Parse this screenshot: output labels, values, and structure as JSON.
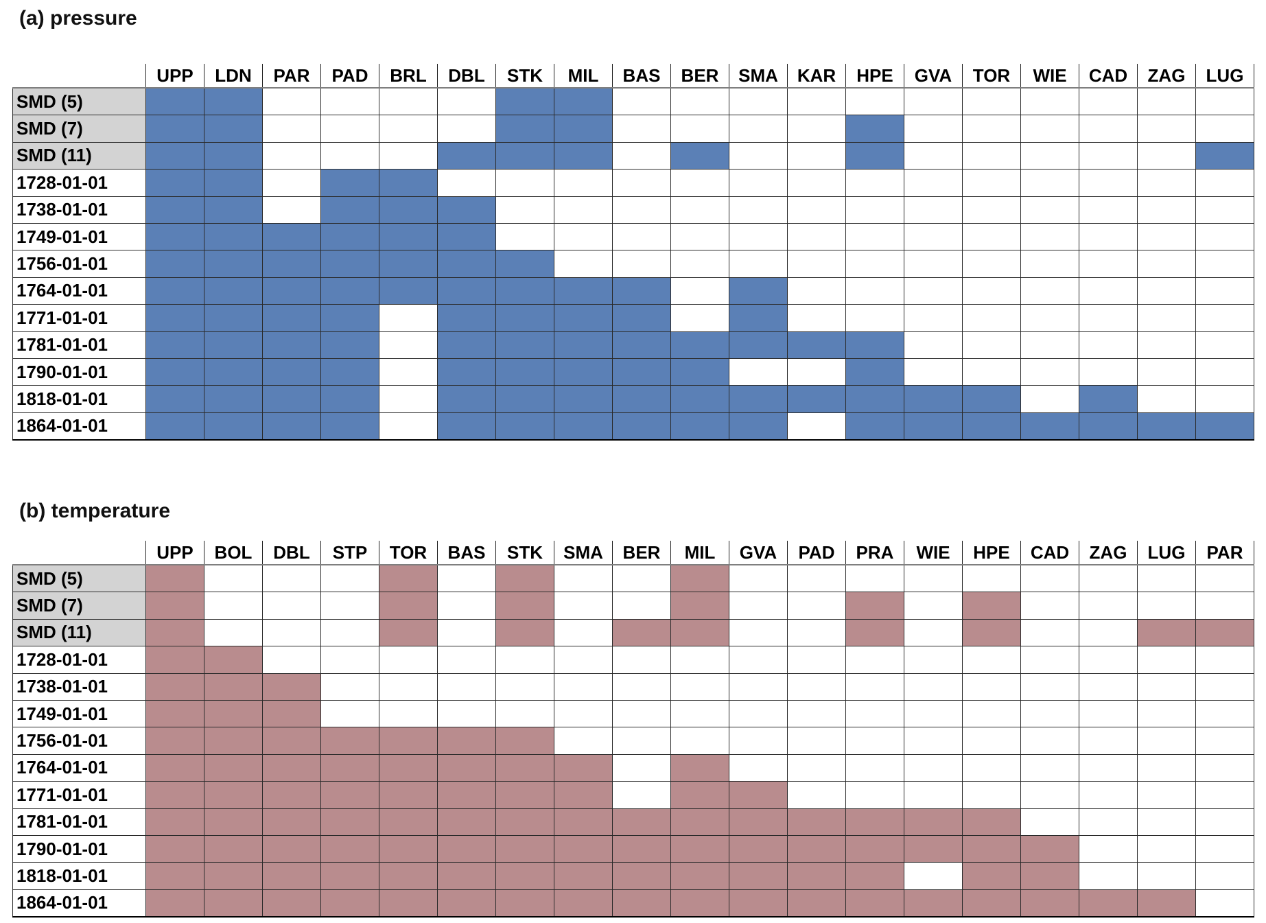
{
  "colors": {
    "pressure_fill": "#5b80b6",
    "temperature_fill": "#b98c8e",
    "label_bg": "#d3d3d3",
    "grid": "#2a2a2a"
  },
  "chart_data": [
    {
      "type": "heatmap",
      "title": "(a) pressure",
      "legend_position": "none",
      "grid": true,
      "value_meaning": "1 = station/series available (filled blue), 0 = not available (white)",
      "columns": [
        "UPP",
        "LDN",
        "PAR",
        "PAD",
        "BRL",
        "DBL",
        "STK",
        "MIL",
        "BAS",
        "BER",
        "SMA",
        "KAR",
        "HPE",
        "GVA",
        "TOR",
        "WIE",
        "CAD",
        "ZAG",
        "LUG"
      ],
      "rows": [
        {
          "label": "SMD (5)",
          "shaded": true,
          "values": [
            1,
            1,
            0,
            0,
            0,
            0,
            1,
            1,
            0,
            0,
            0,
            0,
            0,
            0,
            0,
            0,
            0,
            0,
            0
          ]
        },
        {
          "label": "SMD (7)",
          "shaded": true,
          "values": [
            1,
            1,
            0,
            0,
            0,
            0,
            1,
            1,
            0,
            0,
            0,
            0,
            1,
            0,
            0,
            0,
            0,
            0,
            0
          ]
        },
        {
          "label": "SMD (11)",
          "shaded": true,
          "values": [
            1,
            1,
            0,
            0,
            0,
            1,
            1,
            1,
            0,
            1,
            0,
            0,
            1,
            0,
            0,
            0,
            0,
            0,
            1
          ]
        },
        {
          "label": "1728-01-01",
          "shaded": false,
          "values": [
            1,
            1,
            0,
            1,
            1,
            0,
            0,
            0,
            0,
            0,
            0,
            0,
            0,
            0,
            0,
            0,
            0,
            0,
            0
          ]
        },
        {
          "label": "1738-01-01",
          "shaded": false,
          "values": [
            1,
            1,
            0,
            1,
            1,
            1,
            0,
            0,
            0,
            0,
            0,
            0,
            0,
            0,
            0,
            0,
            0,
            0,
            0
          ]
        },
        {
          "label": "1749-01-01",
          "shaded": false,
          "values": [
            1,
            1,
            1,
            1,
            1,
            1,
            0,
            0,
            0,
            0,
            0,
            0,
            0,
            0,
            0,
            0,
            0,
            0,
            0
          ]
        },
        {
          "label": "1756-01-01",
          "shaded": false,
          "values": [
            1,
            1,
            1,
            1,
            1,
            1,
            1,
            0,
            0,
            0,
            0,
            0,
            0,
            0,
            0,
            0,
            0,
            0,
            0
          ]
        },
        {
          "label": "1764-01-01",
          "shaded": false,
          "values": [
            1,
            1,
            1,
            1,
            1,
            1,
            1,
            1,
            1,
            0,
            1,
            0,
            0,
            0,
            0,
            0,
            0,
            0,
            0
          ]
        },
        {
          "label": "1771-01-01",
          "shaded": false,
          "values": [
            1,
            1,
            1,
            1,
            0,
            1,
            1,
            1,
            1,
            0,
            1,
            0,
            0,
            0,
            0,
            0,
            0,
            0,
            0
          ]
        },
        {
          "label": "1781-01-01",
          "shaded": false,
          "values": [
            1,
            1,
            1,
            1,
            0,
            1,
            1,
            1,
            1,
            1,
            1,
            1,
            1,
            0,
            0,
            0,
            0,
            0,
            0
          ]
        },
        {
          "label": "1790-01-01",
          "shaded": false,
          "values": [
            1,
            1,
            1,
            1,
            0,
            1,
            1,
            1,
            1,
            1,
            0,
            0,
            1,
            0,
            0,
            0,
            0,
            0,
            0
          ]
        },
        {
          "label": "1818-01-01",
          "shaded": false,
          "values": [
            1,
            1,
            1,
            1,
            0,
            1,
            1,
            1,
            1,
            1,
            1,
            1,
            1,
            1,
            1,
            0,
            1,
            0,
            0
          ]
        },
        {
          "label": "1864-01-01",
          "shaded": false,
          "values": [
            1,
            1,
            1,
            1,
            0,
            1,
            1,
            1,
            1,
            1,
            1,
            0,
            1,
            1,
            1,
            1,
            1,
            1,
            1
          ]
        }
      ]
    },
    {
      "type": "heatmap",
      "title": "(b) temperature",
      "legend_position": "none",
      "grid": true,
      "value_meaning": "1 = station/series available (filled rose), 0 = not available (white)",
      "columns": [
        "UPP",
        "BOL",
        "DBL",
        "STP",
        "TOR",
        "BAS",
        "STK",
        "SMA",
        "BER",
        "MIL",
        "GVA",
        "PAD",
        "PRA",
        "WIE",
        "HPE",
        "CAD",
        "ZAG",
        "LUG",
        "PAR"
      ],
      "rows": [
        {
          "label": "SMD (5)",
          "shaded": true,
          "values": [
            1,
            0,
            0,
            0,
            1,
            0,
            1,
            0,
            0,
            1,
            0,
            0,
            0,
            0,
            0,
            0,
            0,
            0,
            0
          ]
        },
        {
          "label": "SMD (7)",
          "shaded": true,
          "values": [
            1,
            0,
            0,
            0,
            1,
            0,
            1,
            0,
            0,
            1,
            0,
            0,
            1,
            0,
            1,
            0,
            0,
            0,
            0
          ]
        },
        {
          "label": "SMD (11)",
          "shaded": true,
          "values": [
            1,
            0,
            0,
            0,
            1,
            0,
            1,
            0,
            1,
            1,
            0,
            0,
            1,
            0,
            1,
            0,
            0,
            1,
            1
          ]
        },
        {
          "label": "1728-01-01",
          "shaded": false,
          "values": [
            1,
            1,
            0,
            0,
            0,
            0,
            0,
            0,
            0,
            0,
            0,
            0,
            0,
            0,
            0,
            0,
            0,
            0,
            0
          ]
        },
        {
          "label": "1738-01-01",
          "shaded": false,
          "values": [
            1,
            1,
            1,
            0,
            0,
            0,
            0,
            0,
            0,
            0,
            0,
            0,
            0,
            0,
            0,
            0,
            0,
            0,
            0
          ]
        },
        {
          "label": "1749-01-01",
          "shaded": false,
          "values": [
            1,
            1,
            1,
            0,
            0,
            0,
            0,
            0,
            0,
            0,
            0,
            0,
            0,
            0,
            0,
            0,
            0,
            0,
            0
          ]
        },
        {
          "label": "1756-01-01",
          "shaded": false,
          "values": [
            1,
            1,
            1,
            1,
            1,
            1,
            1,
            0,
            0,
            0,
            0,
            0,
            0,
            0,
            0,
            0,
            0,
            0,
            0
          ]
        },
        {
          "label": "1764-01-01",
          "shaded": false,
          "values": [
            1,
            1,
            1,
            1,
            1,
            1,
            1,
            1,
            0,
            1,
            0,
            0,
            0,
            0,
            0,
            0,
            0,
            0,
            0
          ]
        },
        {
          "label": "1771-01-01",
          "shaded": false,
          "values": [
            1,
            1,
            1,
            1,
            1,
            1,
            1,
            1,
            0,
            1,
            1,
            0,
            0,
            0,
            0,
            0,
            0,
            0,
            0
          ]
        },
        {
          "label": "1781-01-01",
          "shaded": false,
          "values": [
            1,
            1,
            1,
            1,
            1,
            1,
            1,
            1,
            1,
            1,
            1,
            1,
            1,
            1,
            1,
            0,
            0,
            0,
            0
          ]
        },
        {
          "label": "1790-01-01",
          "shaded": false,
          "values": [
            1,
            1,
            1,
            1,
            1,
            1,
            1,
            1,
            1,
            1,
            1,
            1,
            1,
            1,
            1,
            1,
            0,
            0,
            0
          ]
        },
        {
          "label": "1818-01-01",
          "shaded": false,
          "values": [
            1,
            1,
            1,
            1,
            1,
            1,
            1,
            1,
            1,
            1,
            1,
            1,
            1,
            0,
            1,
            1,
            0,
            0,
            0
          ]
        },
        {
          "label": "1864-01-01",
          "shaded": false,
          "values": [
            1,
            1,
            1,
            1,
            1,
            1,
            1,
            1,
            1,
            1,
            1,
            1,
            1,
            1,
            1,
            1,
            1,
            1,
            0
          ]
        }
      ]
    }
  ]
}
